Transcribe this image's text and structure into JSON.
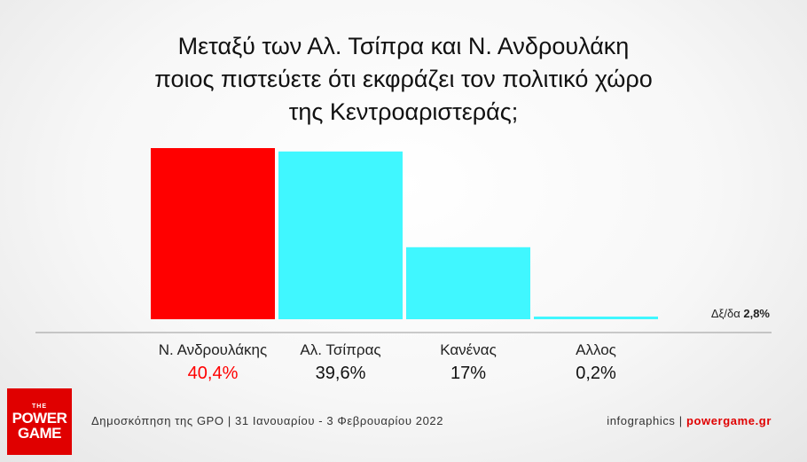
{
  "chart_data": {
    "type": "bar",
    "title": [
      "Μεταξύ των Αλ. Τσίπρα και Ν. Ανδρουλάκη",
      "ποιος πιστεύετε ότι εκφράζει τον πολιτικό χώρο",
      "της Κεντροαριστεράς;"
    ],
    "categories": [
      "Ν. Ανδρουλάκης",
      "Αλ. Τσίπρας",
      "Κανένας",
      "Αλλος"
    ],
    "values": [
      40.4,
      39.6,
      17,
      0.2
    ],
    "value_labels": [
      "40,4%",
      "39,6%",
      "17%",
      "0,2%"
    ],
    "colors": [
      "#ff0000",
      "#40f7ff",
      "#40f7ff",
      "#40f7ff"
    ],
    "value_label_colors": [
      "#ff0000",
      "#111111",
      "#111111",
      "#111111"
    ],
    "ylim": [
      0,
      40.4
    ],
    "grid": false,
    "note": {
      "label": "Δξ/δα",
      "value": "2,8%"
    }
  },
  "footer": {
    "source": "Δημοσκόπηση της GPO | 31 Ιανουαρίου - 3 Φεβρουαρίου 2022",
    "credit_prefix": "infographics | ",
    "credit_site": "powergame.gr"
  },
  "logo": {
    "line1": "THE",
    "line2": "POWER",
    "line3": "GAME"
  }
}
